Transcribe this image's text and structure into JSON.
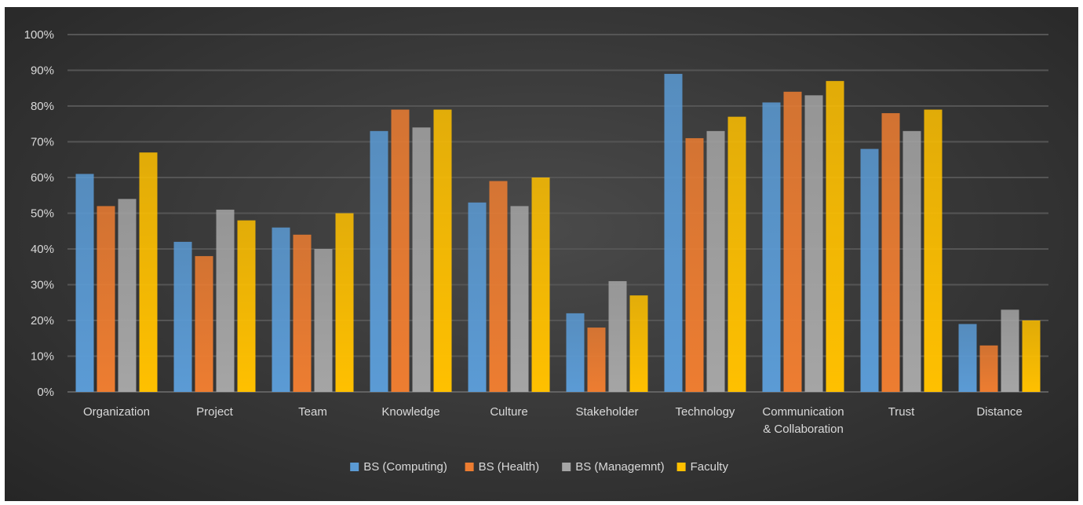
{
  "chart_data": {
    "type": "bar",
    "categories": [
      "Organization",
      "Project",
      "Team",
      "Knowledge",
      "Culture",
      "Stakeholder",
      "Technology",
      "Communication & Collaboration",
      "Trust",
      "Distance"
    ],
    "category_lines": [
      [
        "Organization"
      ],
      [
        "Project"
      ],
      [
        "Team"
      ],
      [
        "Knowledge"
      ],
      [
        "Culture"
      ],
      [
        "Stakeholder"
      ],
      [
        "Technology"
      ],
      [
        "Communication",
        "& Collaboration"
      ],
      [
        "Trust"
      ],
      [
        "Distance"
      ]
    ],
    "series": [
      {
        "name": "BS (Computing)",
        "color": "#5b9bd5",
        "values": [
          61,
          42,
          46,
          73,
          53,
          22,
          89,
          81,
          68,
          19
        ]
      },
      {
        "name": "BS (Health)",
        "color": "#ed7d31",
        "values": [
          52,
          38,
          44,
          79,
          59,
          18,
          71,
          84,
          78,
          13
        ]
      },
      {
        "name": "BS (Managemnt)",
        "color": "#a5a5a5",
        "values": [
          54,
          51,
          40,
          74,
          52,
          31,
          73,
          83,
          73,
          23
        ]
      },
      {
        "name": "Faculty",
        "color": "#ffc000",
        "values": [
          67,
          48,
          50,
          79,
          60,
          27,
          77,
          87,
          79,
          20
        ]
      }
    ],
    "y_ticks": [
      "0%",
      "10%",
      "20%",
      "30%",
      "40%",
      "50%",
      "60%",
      "70%",
      "80%",
      "90%",
      "100%"
    ],
    "ylim": [
      0,
      100
    ],
    "y_unit": "%",
    "grid": true,
    "legend_position": "bottom",
    "title": "",
    "xlabel": "",
    "ylabel": ""
  }
}
